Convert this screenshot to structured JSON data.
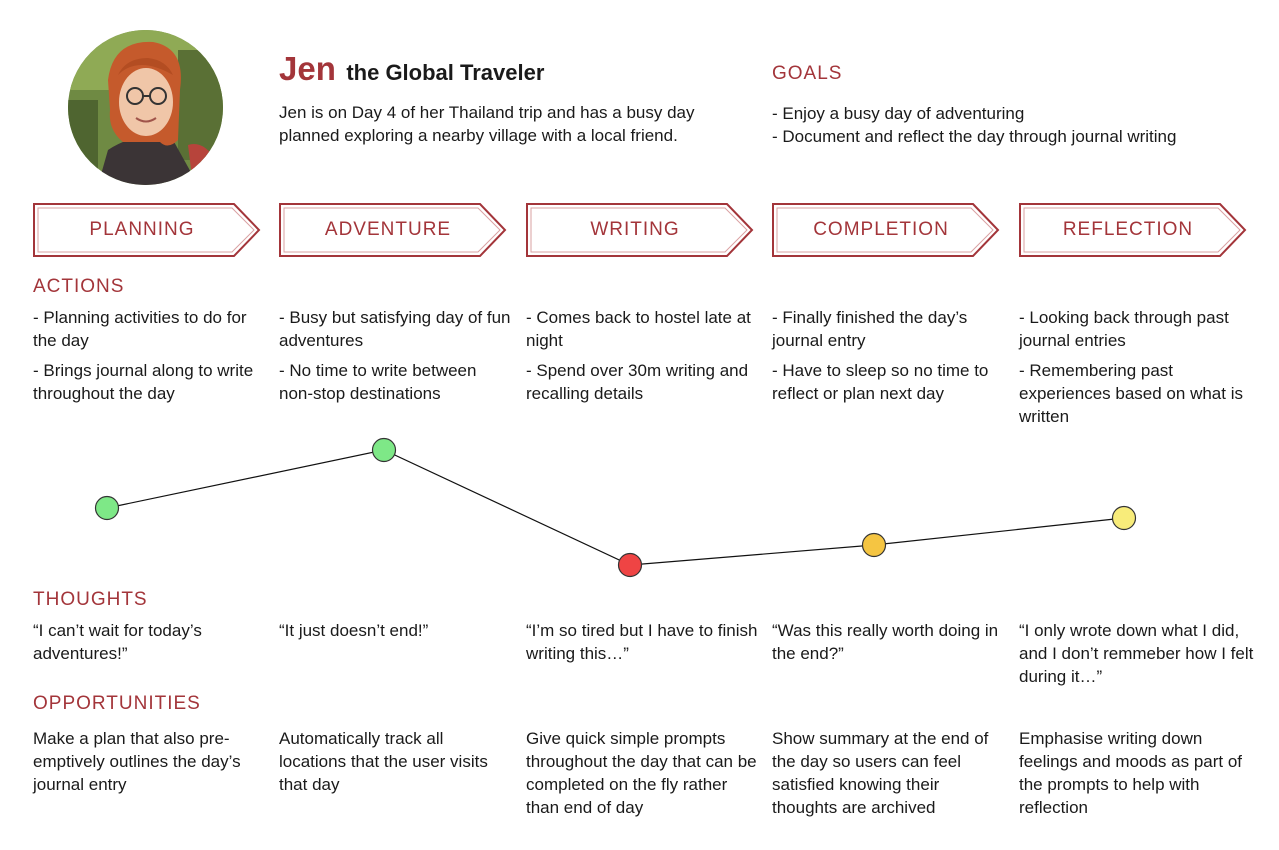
{
  "persona": {
    "name": "Jen",
    "subtitle": "the Global Traveler",
    "description": [
      "Jen is on Day 4 of her Thailand trip and has a busy day",
      "planned exploring a nearby village with a local friend."
    ]
  },
  "goals": {
    "title": "GOALS",
    "items": [
      "- Enjoy a busy day of adventuring",
      "- Document and reflect the day through journal writing"
    ]
  },
  "sections": {
    "actions": "ACTIONS",
    "thoughts": "THOUGHTS",
    "opportunities": "OPPORTUNITIES"
  },
  "stages": [
    {
      "label": "PLANNING",
      "actions": [
        "- Planning activities to do for the day",
        "- Brings journal along to write throughout the day"
      ],
      "thought": "“I can’t wait for today’s adventures!”",
      "opportunity": "Make a plan that also pre-emptively outlines the day’s journal entry",
      "mood": "positive"
    },
    {
      "label": "ADVENTURE",
      "actions": [
        "- Busy but satisfying day of fun adventures",
        "- No time to write between non-stop destinations"
      ],
      "thought": "“It just doesn’t end!”",
      "opportunity": "Automatically track all locations that the user visits that day",
      "mood": "positive"
    },
    {
      "label": "WRITING",
      "actions": [
        "- Comes back to hostel late at night",
        "- Spend over 30m writing and recalling details"
      ],
      "thought": "“I’m so tired but I have to finish writing this…”",
      "opportunity": "Give quick simple prompts throughout the day that can be completed on the fly rather than end of day",
      "mood": "negative"
    },
    {
      "label": "COMPLETION",
      "actions": [
        "- Finally finished the day’s journal entry",
        "- Have to sleep so no time to reflect or plan next day"
      ],
      "thought": "“Was this really worth doing in the end?”",
      "opportunity": "Show summary at the end of the day so users can feel satisfied knowing their thoughts are archived",
      "mood": "neutral"
    },
    {
      "label": "REFLECTION",
      "actions": [
        "- Looking back through past journal entries",
        "- Remembering past experiences based on what is written"
      ],
      "thought": "“I only wrote down what I did, and I don’t remmeber how I felt during it…”",
      "opportunity": "Emphasise writing down feelings and moods as part of the prompts to help with reflection",
      "mood": "neutral-light"
    }
  ],
  "colors": {
    "accent": "#a3353a",
    "positive": "#7ee887",
    "negative": "#ef4444",
    "neutral": "#f5c542",
    "neutral-light": "#f8ec7a"
  }
}
